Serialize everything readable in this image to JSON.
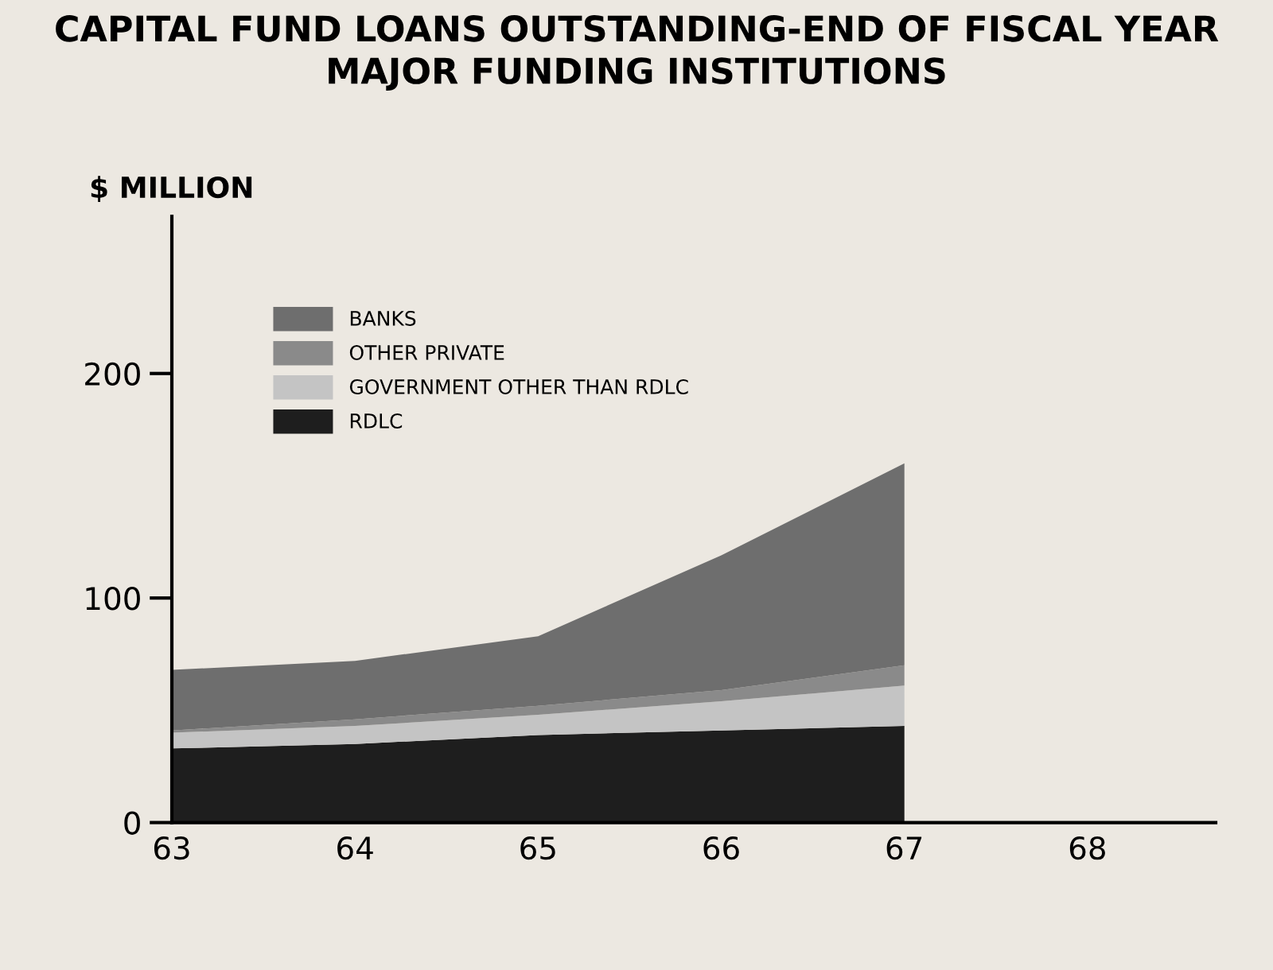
{
  "chart_data": {
    "type": "area",
    "stacked": true,
    "title": "CAPITAL FUND LOANS OUTSTANDING-END OF FISCAL YEAR\nMAJOR FUNDING INSTITUTIONS",
    "ylabel": "$ MILLION",
    "x": [
      63,
      64,
      65,
      66,
      67
    ],
    "series": [
      {
        "name": "RDLC",
        "color": "#1e1e1e",
        "values": [
          33,
          35,
          39,
          41,
          43
        ]
      },
      {
        "name": "GOVERNMENT OTHER THAN RDLC",
        "color": "#c4c4c4",
        "values": [
          7,
          8,
          9,
          13,
          18
        ]
      },
      {
        "name": "OTHER PRIVATE",
        "color": "#8a8a8a",
        "values": [
          1,
          3,
          4,
          5,
          9
        ]
      },
      {
        "name": "BANKS",
        "color": "#6e6e6e",
        "values": [
          27,
          26,
          31,
          60,
          90
        ]
      }
    ],
    "xlim": [
      63,
      68.7
    ],
    "xticks": [
      63,
      64,
      65,
      66,
      67,
      68
    ],
    "ylim": [
      0,
      270
    ],
    "yticks": [
      0,
      100,
      200
    ],
    "grid": false,
    "legend": "top left"
  }
}
